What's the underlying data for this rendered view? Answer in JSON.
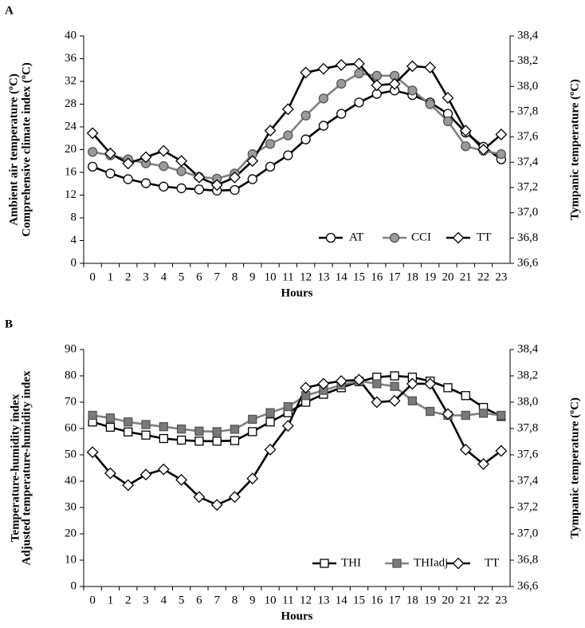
{
  "chart_data": [
    {
      "type": "line",
      "panel_label": "A",
      "ylabel": [
        "Ambient air temperature  (ºC)",
        "Comprehensive climate index  (ºC)"
      ],
      "y2label": "Tympanic  temperature  (ºC)",
      "xlabel": "Hours",
      "categories": [
        "0",
        "1",
        "2",
        "3",
        "4",
        "5",
        "6",
        "7",
        "8",
        "9",
        "10",
        "11",
        "12",
        "13",
        "14",
        "15",
        "16",
        "17",
        "18",
        "19",
        "20",
        "21",
        "22",
        "23"
      ],
      "ylim": [
        0,
        40
      ],
      "yticks": [
        0,
        4,
        8,
        12,
        16,
        20,
        24,
        28,
        32,
        36,
        40
      ],
      "y2lim": [
        36.6,
        38.4
      ],
      "y2ticks": [
        {
          "value": 36.6,
          "label": "36,6"
        },
        {
          "value": 36.8,
          "label": "36,8"
        },
        {
          "value": 37.0,
          "label": "37,0"
        },
        {
          "value": 37.2,
          "label": "37,2"
        },
        {
          "value": 37.4,
          "label": "37,4"
        },
        {
          "value": 37.6,
          "label": "37,6"
        },
        {
          "value": 37.8,
          "label": "37,8"
        },
        {
          "value": 38.0,
          "label": "38,0"
        },
        {
          "value": 38.2,
          "label": "38,2"
        },
        {
          "value": 38.4,
          "label": "38,4"
        }
      ],
      "legend": "lower right",
      "series": [
        {
          "name": "AT",
          "color": "#000000",
          "marker": "circle",
          "marker_fill": "#ffffff",
          "axis": "y",
          "values": [
            17,
            15.8,
            14.8,
            14.1,
            13.5,
            13.2,
            13,
            12.8,
            12.9,
            14.8,
            17,
            19,
            21.8,
            24.2,
            26.3,
            28.3,
            29.8,
            30.4,
            29.6,
            28.3,
            26.3,
            23,
            20.5,
            18.3
          ]
        },
        {
          "name": "CCI",
          "color": "#808080",
          "marker": "circle",
          "marker_fill": "#9a9a9a",
          "axis": "y",
          "values": [
            19.6,
            19,
            18.3,
            17.6,
            17.1,
            16.2,
            15.2,
            14.9,
            15.8,
            19.2,
            21,
            22.5,
            26,
            29,
            31.6,
            33.4,
            33,
            33,
            30.4,
            28,
            25,
            20.6,
            19.8,
            19.2
          ]
        },
        {
          "name": "TT",
          "color": "#000000",
          "marker": "diamond",
          "marker_fill": "#ffffff",
          "axis": "y2",
          "values": [
            37.63,
            37.47,
            37.39,
            37.44,
            37.49,
            37.41,
            37.28,
            37.22,
            37.28,
            37.41,
            37.65,
            37.82,
            38.11,
            38.14,
            38.17,
            38.18,
            38.01,
            38.02,
            38.16,
            38.15,
            37.91,
            37.65,
            37.5,
            37.62
          ]
        }
      ]
    },
    {
      "type": "line",
      "panel_label": "B",
      "ylabel": [
        "Temperature-humidity index",
        "Adjusted temperature-humidity index"
      ],
      "y2label": "Tympanic  temperature  (ºC)",
      "xlabel": "Hours",
      "categories": [
        "0",
        "1",
        "2",
        "3",
        "4",
        "5",
        "6",
        "7",
        "8",
        "9",
        "10",
        "11",
        "12",
        "13",
        "14",
        "15",
        "16",
        "17",
        "18",
        "19",
        "20",
        "21",
        "22",
        "23"
      ],
      "ylim": [
        0,
        90
      ],
      "yticks": [
        0,
        10,
        20,
        30,
        40,
        50,
        60,
        70,
        80,
        90
      ],
      "y2lim": [
        36.6,
        38.4
      ],
      "y2ticks": [
        {
          "value": 36.6,
          "label": "36,6"
        },
        {
          "value": 36.8,
          "label": "36,8"
        },
        {
          "value": 37.0,
          "label": "37,0"
        },
        {
          "value": 37.2,
          "label": "37,2"
        },
        {
          "value": 37.4,
          "label": "37,4"
        },
        {
          "value": 37.6,
          "label": "37,6"
        },
        {
          "value": 37.8,
          "label": "37,8"
        },
        {
          "value": 38.0,
          "label": "38,0"
        },
        {
          "value": 38.2,
          "label": "38,2"
        },
        {
          "value": 38.4,
          "label": "38,4"
        }
      ],
      "legend": "lower right",
      "series": [
        {
          "name": "THI",
          "color": "#000000",
          "marker": "square",
          "marker_fill": "#ffffff",
          "axis": "y",
          "values": [
            62.5,
            60.5,
            58.7,
            57.5,
            56.2,
            55.6,
            55.2,
            55.2,
            55.4,
            58.8,
            62.5,
            66,
            70,
            73,
            75.5,
            77.8,
            79.5,
            80,
            79.5,
            78,
            75.5,
            72.5,
            68,
            64.6
          ]
        },
        {
          "name": "THIadj",
          "color": "#808080",
          "marker": "square",
          "marker_fill": "#7a7a7a",
          "axis": "y",
          "values": [
            65,
            64,
            62.5,
            61.5,
            60.7,
            59.8,
            59,
            58.8,
            59.7,
            63.5,
            66,
            68.3,
            72.5,
            74.5,
            76.5,
            78,
            77,
            76,
            70.5,
            66.5,
            65,
            65,
            65.8,
            65
          ]
        },
        {
          "name": "TT",
          "color": "#000000",
          "marker": "diamond",
          "marker_fill": "#ffffff",
          "axis": "y2",
          "values": [
            37.62,
            37.46,
            37.37,
            37.45,
            37.49,
            37.41,
            37.28,
            37.22,
            37.28,
            37.42,
            37.64,
            37.82,
            38.11,
            38.14,
            38.16,
            38.17,
            38.0,
            38.01,
            38.14,
            38.14,
            37.91,
            37.64,
            37.53,
            37.63
          ]
        }
      ]
    }
  ]
}
